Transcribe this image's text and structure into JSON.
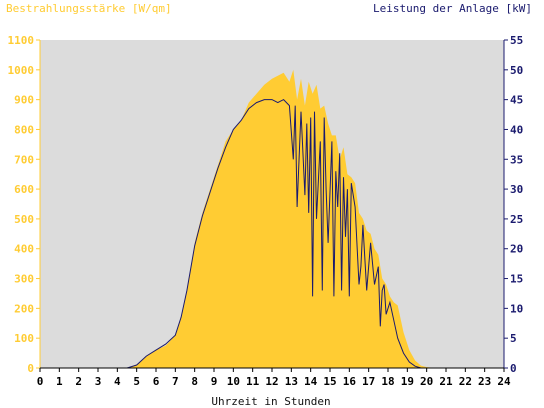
{
  "chart_data": {
    "type": "area",
    "left_axis_label": "Bestrahlungsstärke [W/qm]",
    "right_axis_label": "Leistung der Anlage [kW]",
    "xlabel": "Uhrzeit in Stunden",
    "xlim": [
      0,
      24
    ],
    "xticks": [
      0,
      1,
      2,
      3,
      4,
      5,
      6,
      7,
      8,
      9,
      10,
      11,
      12,
      13,
      14,
      15,
      16,
      17,
      18,
      19,
      20,
      21,
      22,
      23,
      24
    ],
    "y_left_lim": [
      0,
      1100
    ],
    "y_left_ticks": [
      0,
      100,
      200,
      300,
      400,
      500,
      600,
      700,
      800,
      900,
      1000,
      1100
    ],
    "y_right_lim": [
      0,
      55
    ],
    "y_right_ticks": [
      0,
      5,
      10,
      15,
      20,
      25,
      30,
      35,
      40,
      45,
      50,
      55
    ],
    "grid": false,
    "colors": {
      "plot_bg": "#dcdcdc",
      "irradiance": "#ffcc33",
      "power": "#1a1a6e",
      "left_axis": "#ffcc33",
      "right_axis": "#1a1a6e"
    },
    "series": [
      {
        "name": "Bestrahlungsstärke [W/qm]",
        "axis": "left",
        "style": "filled-area",
        "x": [
          0,
          4.5,
          5,
          5.5,
          6,
          6.5,
          7,
          7.3,
          7.6,
          8,
          8.4,
          8.8,
          9.2,
          9.6,
          10,
          10.4,
          10.8,
          11.2,
          11.6,
          12,
          12.3,
          12.6,
          12.9,
          13.1,
          13.3,
          13.5,
          13.7,
          13.9,
          14.1,
          14.3,
          14.5,
          14.7,
          14.9,
          15.1,
          15.3,
          15.5,
          15.7,
          15.9,
          16.1,
          16.3,
          16.5,
          16.7,
          16.9,
          17.1,
          17.3,
          17.5,
          17.7,
          17.9,
          18.1,
          18.3,
          18.5,
          18.8,
          19.1,
          19.4,
          19.7,
          20,
          20.5,
          24
        ],
        "y": [
          0,
          0,
          12,
          40,
          60,
          75,
          110,
          170,
          260,
          420,
          520,
          600,
          680,
          760,
          800,
          830,
          890,
          920,
          950,
          970,
          980,
          990,
          960,
          1000,
          900,
          970,
          880,
          960,
          920,
          950,
          870,
          880,
          820,
          780,
          780,
          700,
          740,
          650,
          640,
          620,
          520,
          500,
          460,
          450,
          400,
          380,
          300,
          280,
          240,
          220,
          210,
          120,
          60,
          25,
          8,
          3,
          0,
          0
        ]
      },
      {
        "name": "Leistung der Anlage [kW]",
        "axis": "right",
        "style": "line",
        "x": [
          0,
          4.5,
          5,
          5.5,
          6,
          6.5,
          7,
          7.3,
          7.6,
          8,
          8.4,
          8.8,
          9.2,
          9.6,
          10,
          10.4,
          10.8,
          11.2,
          11.6,
          12,
          12.3,
          12.6,
          12.9,
          13.1,
          13.2,
          13.3,
          13.5,
          13.7,
          13.8,
          13.9,
          14,
          14.1,
          14.2,
          14.3,
          14.5,
          14.6,
          14.7,
          14.8,
          14.9,
          15.1,
          15.2,
          15.3,
          15.4,
          15.5,
          15.6,
          15.7,
          15.8,
          15.9,
          16,
          16.1,
          16.3,
          16.5,
          16.6,
          16.7,
          16.9,
          17.1,
          17.3,
          17.5,
          17.6,
          17.7,
          17.8,
          17.9,
          18.1,
          18.3,
          18.5,
          18.8,
          19.1,
          19.4,
          19.7,
          20,
          20.5,
          24
        ],
        "y": [
          0,
          0,
          0.5,
          2,
          3,
          4,
          5.5,
          8.5,
          13,
          20.5,
          25.5,
          29.5,
          33.5,
          37,
          40,
          41.5,
          43.5,
          44.5,
          45,
          45,
          44.5,
          45,
          44,
          35,
          44,
          27,
          43,
          29,
          41,
          26,
          42,
          12,
          43,
          25,
          38,
          13,
          42,
          30,
          21,
          38,
          12,
          33,
          27,
          36,
          13,
          32,
          22,
          30,
          12,
          31,
          27,
          14,
          17,
          24,
          13,
          21,
          14,
          17,
          7,
          13,
          14,
          9,
          11,
          8,
          5,
          2.5,
          1,
          0.3,
          0,
          0,
          0,
          0
        ]
      }
    ]
  }
}
